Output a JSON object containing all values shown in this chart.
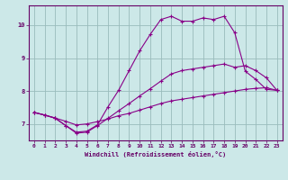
{
  "xlabel": "Windchill (Refroidissement éolien,°C)",
  "bg_color": "#cce8e8",
  "line_color": "#880088",
  "grid_color": "#99bbbb",
  "axis_color": "#660066",
  "text_color": "#660066",
  "xlim": [
    -0.5,
    23.5
  ],
  "ylim": [
    6.5,
    10.6
  ],
  "yticks": [
    7,
    8,
    9,
    10
  ],
  "xticks": [
    0,
    1,
    2,
    3,
    4,
    5,
    6,
    7,
    8,
    9,
    10,
    11,
    12,
    13,
    14,
    15,
    16,
    17,
    18,
    19,
    20,
    21,
    22,
    23
  ],
  "line1_x": [
    0,
    1,
    2,
    3,
    4,
    5,
    6,
    7,
    8,
    9,
    10,
    11,
    12,
    13,
    14,
    15,
    16,
    17,
    18,
    19,
    20,
    21,
    22,
    23
  ],
  "line1_y": [
    7.35,
    7.27,
    7.18,
    7.08,
    6.97,
    7.0,
    7.07,
    7.15,
    7.25,
    7.32,
    7.42,
    7.52,
    7.62,
    7.7,
    7.75,
    7.8,
    7.85,
    7.9,
    7.95,
    8.0,
    8.05,
    8.08,
    8.1,
    8.02
  ],
  "line2_x": [
    0,
    1,
    2,
    3,
    4,
    5,
    6,
    7,
    8,
    9,
    10,
    11,
    12,
    13,
    14,
    15,
    16,
    17,
    18,
    19,
    20,
    21,
    22,
    23
  ],
  "line2_y": [
    7.35,
    7.27,
    7.18,
    6.95,
    6.75,
    6.78,
    6.97,
    7.52,
    8.02,
    8.62,
    9.22,
    9.72,
    10.17,
    10.27,
    10.12,
    10.12,
    10.22,
    10.17,
    10.27,
    9.77,
    8.6,
    8.35,
    8.05,
    8.02
  ],
  "line3_x": [
    0,
    1,
    2,
    3,
    4,
    5,
    6,
    7,
    8,
    9,
    10,
    11,
    12,
    13,
    14,
    15,
    16,
    17,
    18,
    19,
    20,
    21,
    22,
    23
  ],
  "line3_y": [
    7.35,
    7.27,
    7.17,
    6.95,
    6.72,
    6.75,
    6.95,
    7.17,
    7.4,
    7.62,
    7.85,
    8.07,
    8.3,
    8.52,
    8.62,
    8.67,
    8.72,
    8.77,
    8.82,
    8.72,
    8.77,
    8.62,
    8.4,
    8.02
  ],
  "marker": "+",
  "markersize": 2.5,
  "linewidth": 0.8
}
